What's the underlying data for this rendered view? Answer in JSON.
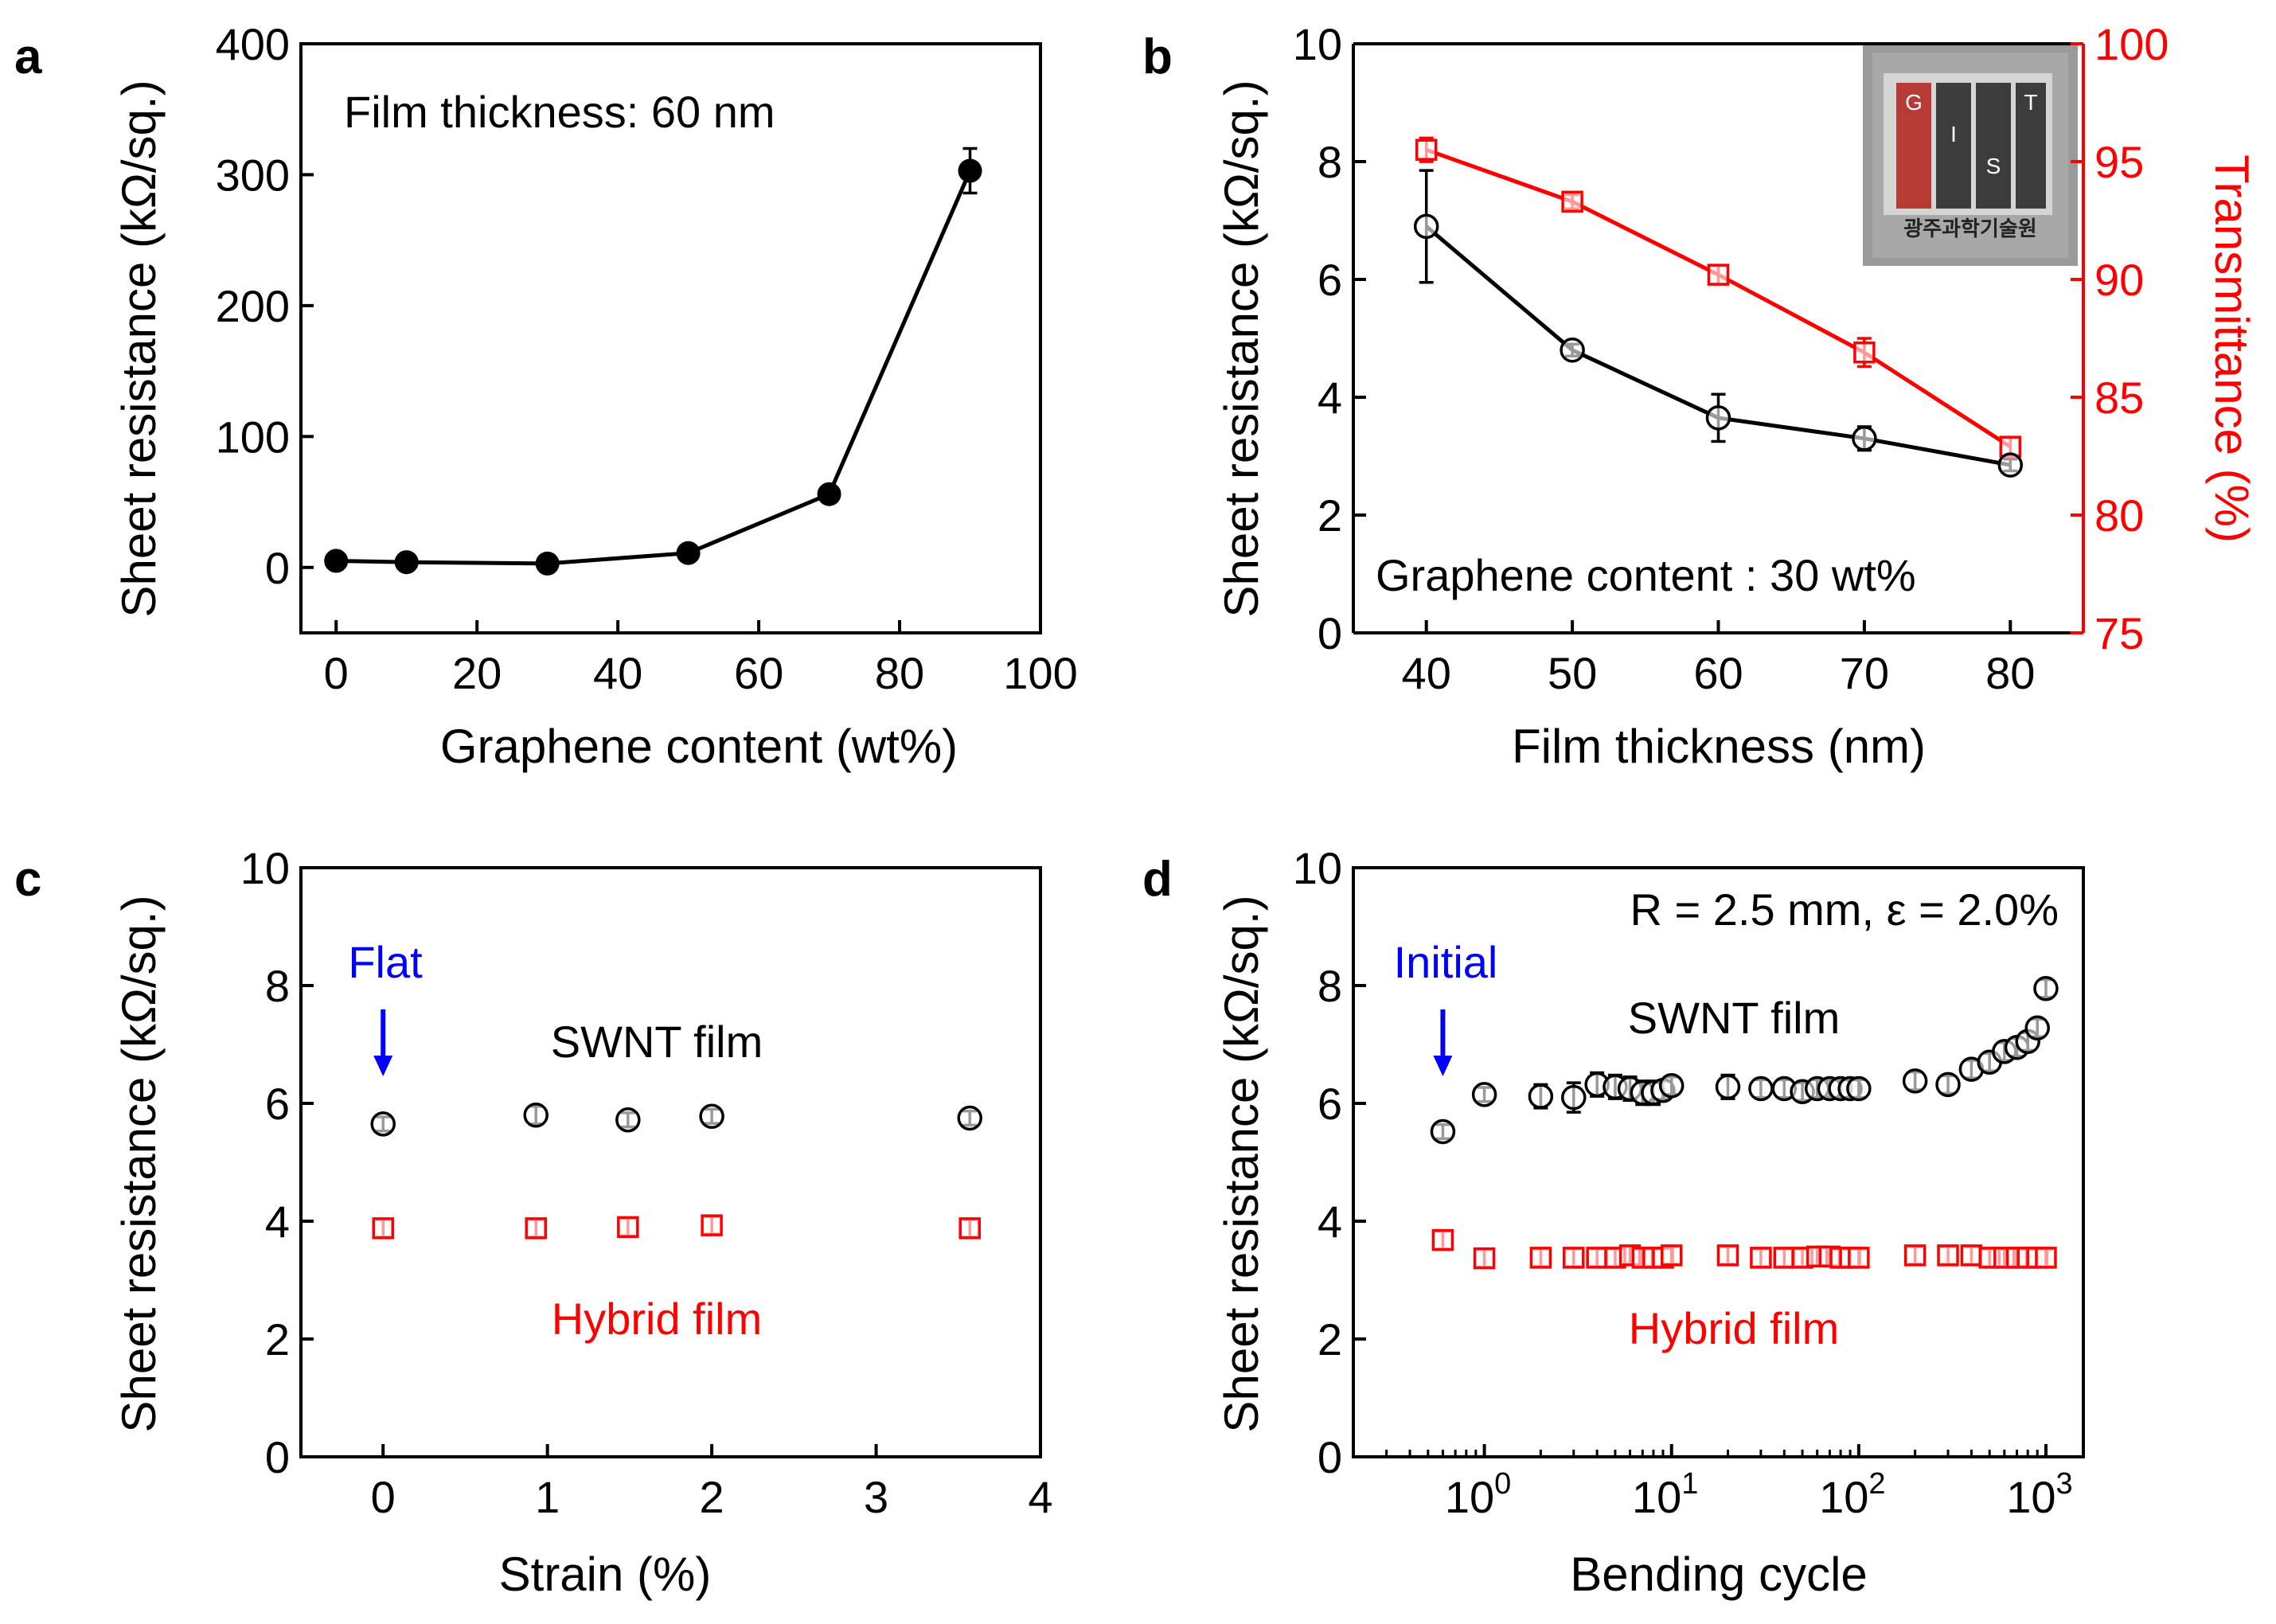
{
  "chart_data": [
    {
      "panel": "a",
      "type": "line",
      "xlabel": "Graphene content (wt%)",
      "ylabel": "Sheet resistance (kΩ/sq.)",
      "xlim": [
        -5,
        100
      ],
      "ylim": [
        -50,
        400
      ],
      "xticks": [
        0,
        20,
        40,
        60,
        80,
        100
      ],
      "yticks": [
        0,
        100,
        200,
        300,
        400
      ],
      "annotation": "Film thickness: 60 nm",
      "series": [
        {
          "name": "Sheet resistance",
          "color": "#000000",
          "marker": "filled-circle",
          "x": [
            0,
            10,
            30,
            50,
            70,
            90
          ],
          "y": [
            5,
            4,
            3,
            11,
            56,
            303
          ],
          "err": [
            0,
            0,
            0,
            0,
            0,
            17
          ]
        }
      ]
    },
    {
      "panel": "b",
      "type": "line",
      "xlabel": "Film thickness (nm)",
      "ylabel": "Sheet resistance (kΩ/sq.)",
      "ylabel_right": "Transmittance (%)",
      "xlim": [
        35,
        85
      ],
      "ylim": [
        0,
        10
      ],
      "ylim_right": [
        75,
        100
      ],
      "xticks": [
        40,
        50,
        60,
        70,
        80
      ],
      "yticks": [
        0,
        2,
        4,
        6,
        8,
        10
      ],
      "yticks_right": [
        75,
        80,
        85,
        90,
        95,
        100
      ],
      "annotation": "Graphene content : 30 wt%",
      "inset_text": "광주과학기술원",
      "inset_letters": [
        "G",
        "I",
        "S",
        "T"
      ],
      "series": [
        {
          "name": "Sheet resistance",
          "axis": "left",
          "color": "#000000",
          "marker": "open-circle",
          "x": [
            40,
            50,
            60,
            70,
            80
          ],
          "y": [
            6.9,
            4.8,
            3.65,
            3.3,
            2.85
          ],
          "err": [
            0.95,
            0.1,
            0.4,
            0.2,
            0.1
          ]
        },
        {
          "name": "Transmittance",
          "axis": "right",
          "color": "#ff0000",
          "marker": "open-square",
          "x": [
            40,
            50,
            60,
            70,
            80
          ],
          "y": [
            95.5,
            93.3,
            90.2,
            86.9,
            82.9
          ],
          "err": [
            0.5,
            0.3,
            0.4,
            0.6,
            0.4
          ]
        }
      ]
    },
    {
      "panel": "c",
      "type": "scatter",
      "xlabel": "Strain (%)",
      "ylabel": "Sheet resistance (kΩ/sq.)",
      "xlim": [
        -0.5,
        4
      ],
      "ylim": [
        0,
        10
      ],
      "xticks": [
        0,
        1,
        2,
        3,
        4
      ],
      "yticks": [
        0,
        2,
        4,
        6,
        8,
        10
      ],
      "arrow_label": "Flat",
      "arrow_at_x": 0,
      "series": [
        {
          "name": "SWNT film",
          "color": "#000000",
          "marker": "open-circle",
          "x": [
            0,
            0.93,
            1.49,
            2.0,
            3.57
          ],
          "y": [
            5.65,
            5.8,
            5.72,
            5.78,
            5.75
          ],
          "err": [
            0.12,
            0.15,
            0.12,
            0.12,
            0.12
          ]
        },
        {
          "name": "Hybrid film",
          "color": "#ff0000",
          "marker": "open-square",
          "x": [
            0,
            0.93,
            1.49,
            2.0,
            3.57
          ],
          "y": [
            3.88,
            3.88,
            3.9,
            3.93,
            3.88
          ],
          "err": [
            0.15,
            0.15,
            0.15,
            0.15,
            0.15
          ]
        }
      ]
    },
    {
      "panel": "d",
      "type": "scatter",
      "xscale": "log",
      "xlabel": "Bending cycle",
      "ylabel": "Sheet resistance (kΩ/sq.)",
      "xlim_log10": [
        -0.7,
        3.2
      ],
      "ylim": [
        0,
        10
      ],
      "xtick_exponents": [
        "0",
        "1",
        "2",
        "3"
      ],
      "xtick_base": "10",
      "yticks": [
        0,
        2,
        4,
        6,
        8,
        10
      ],
      "annotation": "R = 2.5 mm, ε = 2.0%",
      "arrow_label": "Initial",
      "arrow_at_x": 0.6,
      "series": [
        {
          "name": "SWNT film",
          "color": "#000000",
          "marker": "open-circle",
          "x": [
            0.6,
            1,
            2,
            3,
            4,
            5,
            6,
            7,
            8,
            9,
            10,
            20,
            30,
            40,
            50,
            60,
            70,
            80,
            90,
            100,
            200,
            300,
            400,
            500,
            600,
            700,
            800,
            900,
            1000
          ],
          "y": [
            5.52,
            6.15,
            6.12,
            6.1,
            6.32,
            6.28,
            6.25,
            6.18,
            6.18,
            6.22,
            6.3,
            6.28,
            6.25,
            6.25,
            6.2,
            6.25,
            6.25,
            6.25,
            6.25,
            6.25,
            6.38,
            6.32,
            6.58,
            6.7,
            6.88,
            6.95,
            7.05,
            7.28,
            7.95
          ],
          "err": [
            0.12,
            0.12,
            0.2,
            0.25,
            0.2,
            0.2,
            0.2,
            0.2,
            0.2,
            0.15,
            0.15,
            0.2,
            0.15,
            0.15,
            0.15,
            0.15,
            0.15,
            0.15,
            0.15,
            0.15,
            0.15,
            0.15,
            0.15,
            0.15,
            0.15,
            0.15,
            0.15,
            0.15,
            0.15
          ]
        },
        {
          "name": "Hybrid film",
          "color": "#ff0000",
          "marker": "open-square",
          "x": [
            0.6,
            1,
            2,
            3,
            4,
            5,
            6,
            7,
            8,
            9,
            10,
            20,
            30,
            40,
            50,
            60,
            70,
            80,
            90,
            100,
            200,
            300,
            400,
            500,
            600,
            700,
            800,
            900,
            1000
          ],
          "y": [
            3.68,
            3.37,
            3.38,
            3.38,
            3.38,
            3.38,
            3.42,
            3.38,
            3.38,
            3.38,
            3.42,
            3.42,
            3.38,
            3.38,
            3.38,
            3.4,
            3.4,
            3.38,
            3.38,
            3.38,
            3.42,
            3.42,
            3.42,
            3.38,
            3.38,
            3.38,
            3.38,
            3.38,
            3.38
          ],
          "err": [
            0.15,
            0.15,
            0.15,
            0.15,
            0.15,
            0.15,
            0.15,
            0.15,
            0.15,
            0.15,
            0.15,
            0.15,
            0.15,
            0.15,
            0.15,
            0.15,
            0.15,
            0.15,
            0.15,
            0.15,
            0.15,
            0.15,
            0.15,
            0.15,
            0.15,
            0.15,
            0.15,
            0.15,
            0.15
          ]
        }
      ]
    }
  ],
  "colors": {
    "axis": "#000000",
    "right_axis": "#ff0000",
    "annotation_blue": "#0000ff",
    "hybrid": "#ff0000",
    "swnt": "#000000"
  }
}
